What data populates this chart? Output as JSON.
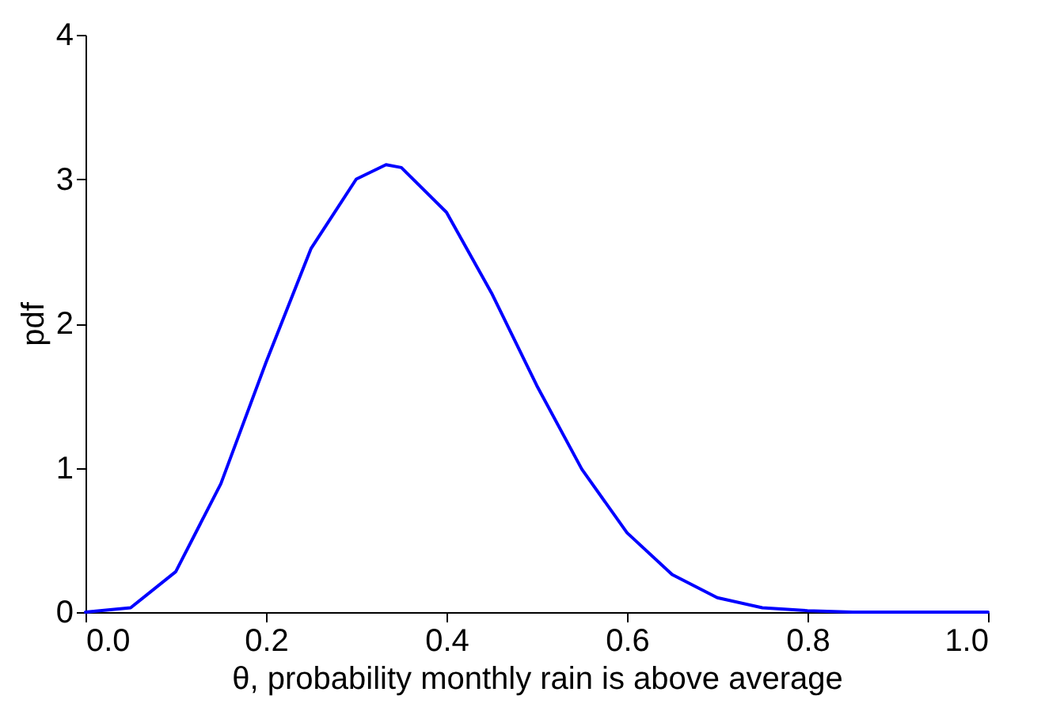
{
  "chart_data": {
    "type": "line",
    "xlabel": "θ, probability monthly rain is above average",
    "ylabel": "pdf",
    "x": [
      0,
      0.05,
      0.1,
      0.15,
      0.2,
      0.25,
      0.3,
      0.333,
      0.35,
      0.4,
      0.45,
      0.5,
      0.55,
      0.6,
      0.65,
      0.7,
      0.75,
      0.8,
      0.85,
      0.9,
      0.95,
      1
    ],
    "series": [
      {
        "color": "#0000ff",
        "values": [
          0,
          0.03,
          0.28,
          0.89,
          1.73,
          2.52,
          3.0,
          3.1,
          3.08,
          2.77,
          2.21,
          1.57,
          0.99,
          0.55,
          0.26,
          0.1,
          0.03,
          0.01,
          0,
          0,
          0,
          0
        ]
      }
    ],
    "xlim": [
      0,
      1
    ],
    "ylim": [
      0,
      4
    ],
    "xticks": [
      {
        "value": 0,
        "label": "0.0"
      },
      {
        "value": 0.2,
        "label": "0.2"
      },
      {
        "value": 0.4,
        "label": "0.4"
      },
      {
        "value": 0.6,
        "label": "0.6"
      },
      {
        "value": 0.8,
        "label": "0.8"
      },
      {
        "value": 1,
        "label": "1.0"
      }
    ],
    "yticks": [
      0,
      1,
      2,
      3,
      4
    ],
    "grid": false,
    "marker": "none",
    "line_style": "solid"
  }
}
